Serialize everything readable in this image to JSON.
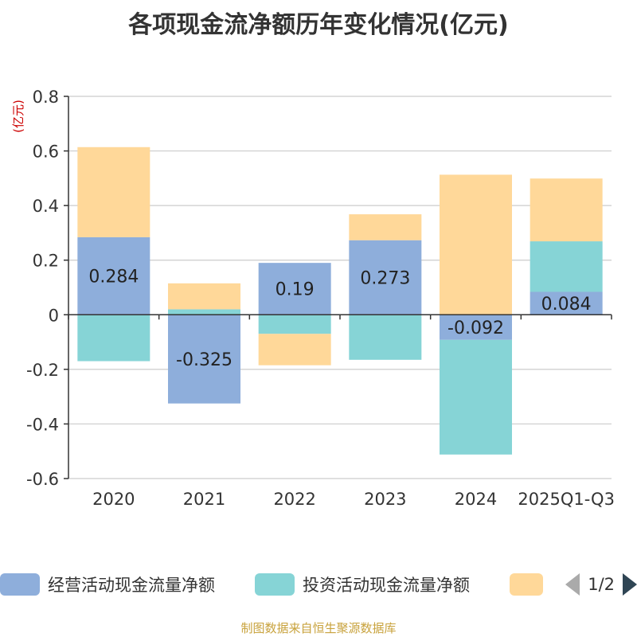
{
  "chart_data": {
    "type": "bar",
    "stacked": true,
    "title": "各项现金流净额历年变化情况(亿元)",
    "ylabel": "(亿元)",
    "xlabel": "",
    "categories": [
      "2020",
      "2021",
      "2022",
      "2023",
      "2024",
      "2025Q1-Q3"
    ],
    "ylim": [
      -0.6,
      0.8
    ],
    "yticks": [
      -0.6,
      -0.4,
      -0.2,
      0,
      0.2,
      0.4,
      0.6,
      0.8
    ],
    "ytick_labels": [
      "-0.6",
      "-0.4",
      "-0.2",
      "0",
      "0.2",
      "0.4",
      "0.6",
      "0.8"
    ],
    "grid": true,
    "legend_position": "bottom",
    "series": [
      {
        "name": "经营活动现金流量净额",
        "color": "#8eaedb",
        "values": [
          0.284,
          -0.325,
          0.19,
          0.273,
          -0.092,
          0.084
        ],
        "labels": [
          "0.284",
          "-0.325",
          "0.19",
          "0.273",
          "-0.092",
          "0.084"
        ],
        "show_labels": true
      },
      {
        "name": "投资活动现金流量净额",
        "color": "#86d4d6",
        "values": [
          -0.17,
          0.02,
          -0.07,
          -0.165,
          -0.42,
          0.185
        ],
        "show_labels": false
      },
      {
        "name": "",
        "color": "#ffd899",
        "values": [
          0.33,
          0.095,
          -0.115,
          0.095,
          0.513,
          0.23
        ],
        "show_labels": false
      }
    ]
  },
  "legend": {
    "page_text": "1/2"
  },
  "source": "制图数据来自恒生聚源数据库"
}
